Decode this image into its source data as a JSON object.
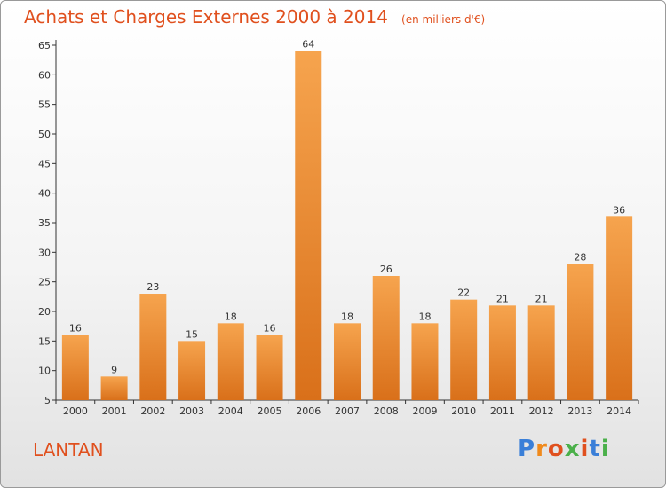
{
  "chart_data": {
    "type": "bar",
    "title": "Achats et Charges Externes 2000 à 2014",
    "subtitle": "(en milliers d'€)",
    "categories": [
      "2000",
      "2001",
      "2002",
      "2003",
      "2004",
      "2005",
      "2006",
      "2007",
      "2008",
      "2009",
      "2010",
      "2011",
      "2012",
      "2013",
      "2014"
    ],
    "values": [
      16,
      9,
      23,
      15,
      18,
      16,
      64,
      18,
      26,
      18,
      22,
      21,
      21,
      28,
      36
    ],
    "ylim": [
      5,
      65
    ],
    "yticks": [
      5,
      10,
      15,
      20,
      25,
      30,
      35,
      40,
      45,
      50,
      55,
      60,
      65
    ],
    "grid": false,
    "bar_color_top": "#f6a44e",
    "bar_color_bottom": "#d9701a"
  },
  "footer": {
    "location": "LANTAN",
    "logo": "Proxiti",
    "logo_colors": [
      "#3a7fd8",
      "#f08a1c",
      "#e0501e",
      "#4bb04a",
      "#e0501e",
      "#3a7fd8",
      "#4bb04a"
    ]
  },
  "title_color": "#e0501e"
}
